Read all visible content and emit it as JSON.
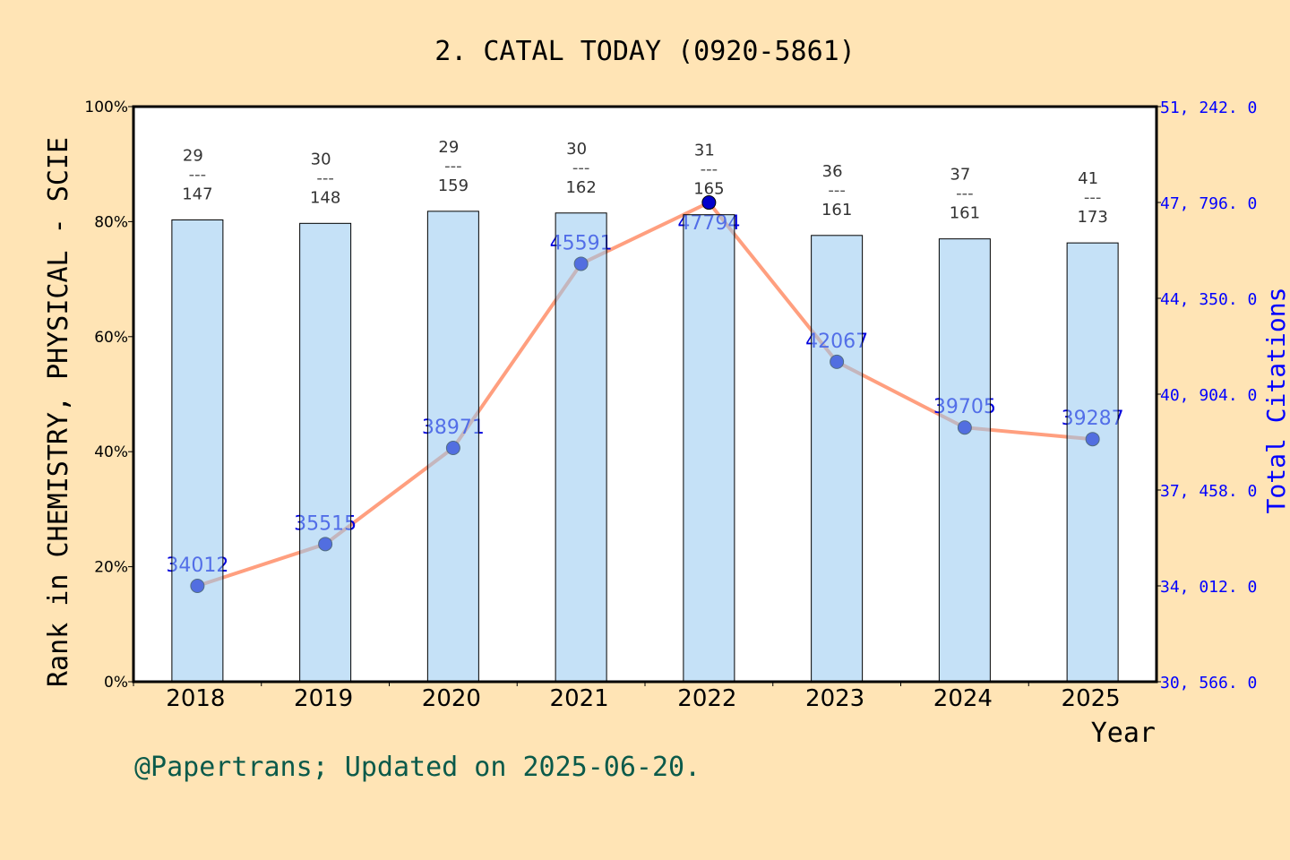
{
  "chart_data": {
    "type": "bar+line",
    "title": "2. CATAL TODAY (0920-5861)",
    "xlabel": "Year",
    "ylabel_left": "Rank in CHEMISTRY, PHYSICAL - SCIE",
    "ylabel_right": "Total Citations",
    "categories": [
      "2018",
      "2019",
      "2020",
      "2021",
      "2022",
      "2023",
      "2024",
      "2025"
    ],
    "bar_series": {
      "values_percent": [
        80.3,
        79.7,
        81.8,
        81.5,
        81.2,
        77.6,
        77.0,
        76.3
      ],
      "rank": [
        29,
        30,
        29,
        30,
        31,
        36,
        37,
        41
      ],
      "total": [
        147,
        148,
        159,
        162,
        165,
        161,
        161,
        173
      ],
      "color": "#c6e1f7"
    },
    "line_series": {
      "values": [
        34012,
        35515,
        38971,
        45591,
        47794,
        42067,
        39705,
        39287
      ],
      "color": "#ff9f7f",
      "marker_color": "#0000cc"
    },
    "left_axis": {
      "ylim": [
        0,
        100
      ],
      "ticks": [
        "0%",
        "20%",
        "40%",
        "60%",
        "80%",
        "100%"
      ]
    },
    "right_axis": {
      "ylim": [
        30566,
        51242
      ],
      "ticks": [
        "30, 566. 0",
        "34, 012. 0",
        "37, 458. 0",
        "40, 904. 0",
        "44, 350. 0",
        "47, 796. 0",
        "51, 242. 0"
      ],
      "color": "#0000ff"
    },
    "grid": false,
    "footer": "@Papertrans; Updated on 2025-06-20."
  }
}
